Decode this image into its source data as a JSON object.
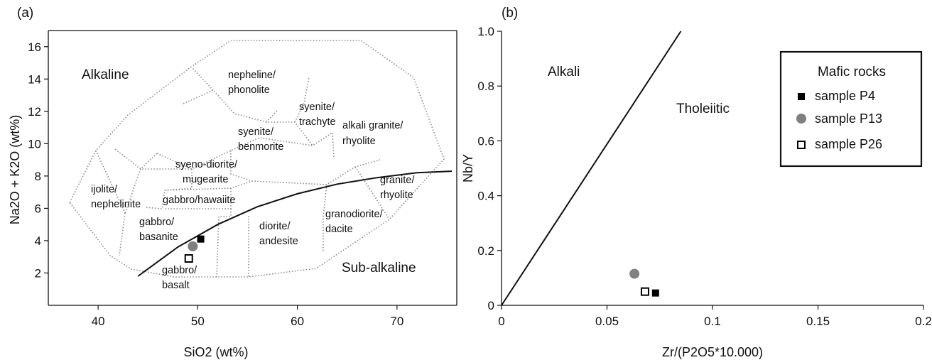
{
  "chart_data": [
    {
      "panel": "(a)",
      "type": "scatter",
      "xlabel": "SiO2 (wt%)",
      "ylabel": "Na2O + K2O (wt%)",
      "xlim": [
        35,
        76
      ],
      "ylim": [
        0,
        17
      ],
      "xticks": [
        "40",
        "50",
        "60",
        "70"
      ],
      "yticks": [
        "2",
        "4",
        "6",
        "8",
        "10",
        "12",
        "14",
        "16"
      ],
      "region_labels": [
        "Alkaline",
        "Sub-alkaline"
      ],
      "field_labels": [
        [
          "nepheline/",
          "phonolite"
        ],
        [
          "syenite/",
          "trachyte"
        ],
        [
          "syenite/",
          "benmorite"
        ],
        [
          "alkali granite/",
          "rhyolite"
        ],
        [
          "syeno-diorite/",
          "mugearite"
        ],
        [
          "granite/",
          "rhyolite"
        ],
        [
          "ijolite/",
          "nephelinite"
        ],
        [
          "gabbro/hawaiite"
        ],
        [
          "gabbro/",
          "basanite"
        ],
        [
          "diorite/",
          "andesite"
        ],
        [
          "granodiorite/",
          "dacite"
        ],
        [
          "gabbro/",
          "basalt"
        ]
      ],
      "divider_curve": {
        "x": [
          44,
          48,
          52,
          56,
          60,
          64,
          68,
          72,
          75.5
        ],
        "y": [
          1.8,
          3.6,
          5.0,
          6.1,
          6.9,
          7.5,
          7.9,
          8.2,
          8.3
        ]
      },
      "series": [
        {
          "name": "sample P4",
          "marker": "filled-square",
          "color": "#000000",
          "x": [
            50.3
          ],
          "y": [
            4.1
          ]
        },
        {
          "name": "sample P13",
          "marker": "filled-circle",
          "color": "#808080",
          "x": [
            49.5
          ],
          "y": [
            3.65
          ]
        },
        {
          "name": "sample P26",
          "marker": "open-square",
          "color": "#000000",
          "x": [
            49.1
          ],
          "y": [
            2.9
          ]
        }
      ],
      "grid": false
    },
    {
      "panel": "(b)",
      "type": "scatter",
      "xlabel": "Zr/(P2O5*10.000)",
      "ylabel": "Nb/Y",
      "xlim": [
        0,
        0.2
      ],
      "ylim": [
        0,
        1.0
      ],
      "xticks": [
        "0",
        "0.05",
        "0.1",
        "0.15",
        "0.2"
      ],
      "yticks": [
        "0",
        "0.2",
        "0.4",
        "0.6",
        "0.8",
        "1.0"
      ],
      "region_labels": [
        "Alkali",
        "Tholeiitic"
      ],
      "divider_line": {
        "x": [
          0,
          0.085
        ],
        "y": [
          0,
          1.0
        ]
      },
      "legend": {
        "title": "Mafic rocks",
        "placement": "top-right"
      },
      "series": [
        {
          "name": "sample P4",
          "marker": "filled-square",
          "color": "#000000",
          "x": [
            0.073
          ],
          "y": [
            0.045
          ]
        },
        {
          "name": "sample P13",
          "marker": "filled-circle",
          "color": "#808080",
          "x": [
            0.063
          ],
          "y": [
            0.115
          ]
        },
        {
          "name": "sample P26",
          "marker": "open-square",
          "color": "#000000",
          "x": [
            0.068
          ],
          "y": [
            0.05
          ]
        }
      ],
      "grid": false
    }
  ]
}
